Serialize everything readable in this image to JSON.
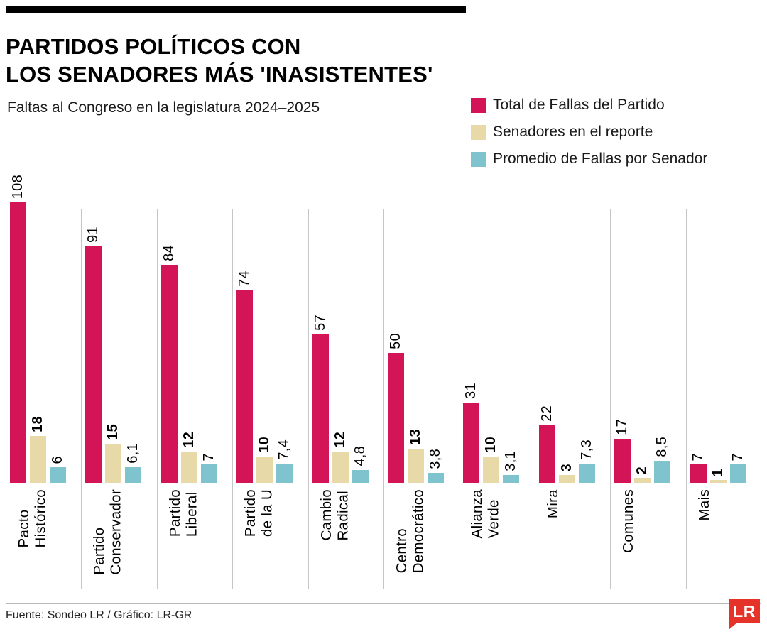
{
  "header": {
    "title_line1": "PARTIDOS POLÍTICOS CON",
    "title_line2": "LOS SENADORES MÁS 'INASISTENTES'",
    "subtitle": "Faltas al Congreso en la legislatura 2024–2025"
  },
  "footer": {
    "source": "Fuente: Sondeo LR / Gráfico: LR-GR",
    "logo_text": "LR",
    "logo_color": "#e5332a"
  },
  "chart_data": {
    "type": "bar",
    "title": "Partidos políticos con los senadores más 'inasistentes'",
    "subtitle": "Faltas al Congreso en la legislatura 2024–2025",
    "categories": [
      "Pacto Histórico",
      "Partido Conservador",
      "Partido Liberal",
      "Partido de la U",
      "Cambio Radical",
      "Centro Democrático",
      "Alianza Verde",
      "Mira",
      "Comunes",
      "Mais"
    ],
    "category_lines": [
      [
        "Pacto",
        "Histórico"
      ],
      [
        "Partido",
        "Conservador"
      ],
      [
        "Partido",
        "Liberal"
      ],
      [
        "Partido",
        "de la U"
      ],
      [
        "Cambio",
        "Radical"
      ],
      [
        "Centro",
        "Democrático"
      ],
      [
        "Alianza",
        "Verde"
      ],
      [
        "Mira"
      ],
      [
        "Comunes"
      ],
      [
        "Mais"
      ]
    ],
    "series": [
      {
        "id": "total-fallas",
        "name": "Total de Fallas del Partido",
        "color": "#d31558",
        "bold_labels": false,
        "values": [
          108,
          91,
          84,
          74,
          57,
          50,
          31,
          22,
          17,
          7
        ],
        "labels": [
          "108",
          "91",
          "84",
          "74",
          "57",
          "50",
          "31",
          "22",
          "17",
          "7"
        ]
      },
      {
        "id": "senadores-reporte",
        "name": "Senadores en el reporte",
        "color": "#e8d9a8",
        "bold_labels": true,
        "values": [
          18,
          15,
          12,
          10,
          12,
          13,
          10,
          3,
          2,
          1
        ],
        "labels": [
          "18",
          "15",
          "12",
          "10",
          "12",
          "13",
          "10",
          "3",
          "2",
          "1"
        ]
      },
      {
        "id": "promedio-fallas",
        "name": "Promedio de Fallas por Senador",
        "color": "#7fc3ce",
        "bold_labels": false,
        "values": [
          6,
          6.1,
          7,
          7.4,
          4.8,
          3.8,
          3.1,
          7.3,
          8.5,
          7
        ],
        "labels": [
          "6",
          "6,1",
          "7",
          "7,4",
          "4,8",
          "3,8",
          "3,1",
          "7,3",
          "8,5",
          "7"
        ]
      }
    ],
    "ylim": [
      0,
      110
    ],
    "grid": false,
    "value_labels": "rotated-90",
    "legend_position": "top-right"
  }
}
